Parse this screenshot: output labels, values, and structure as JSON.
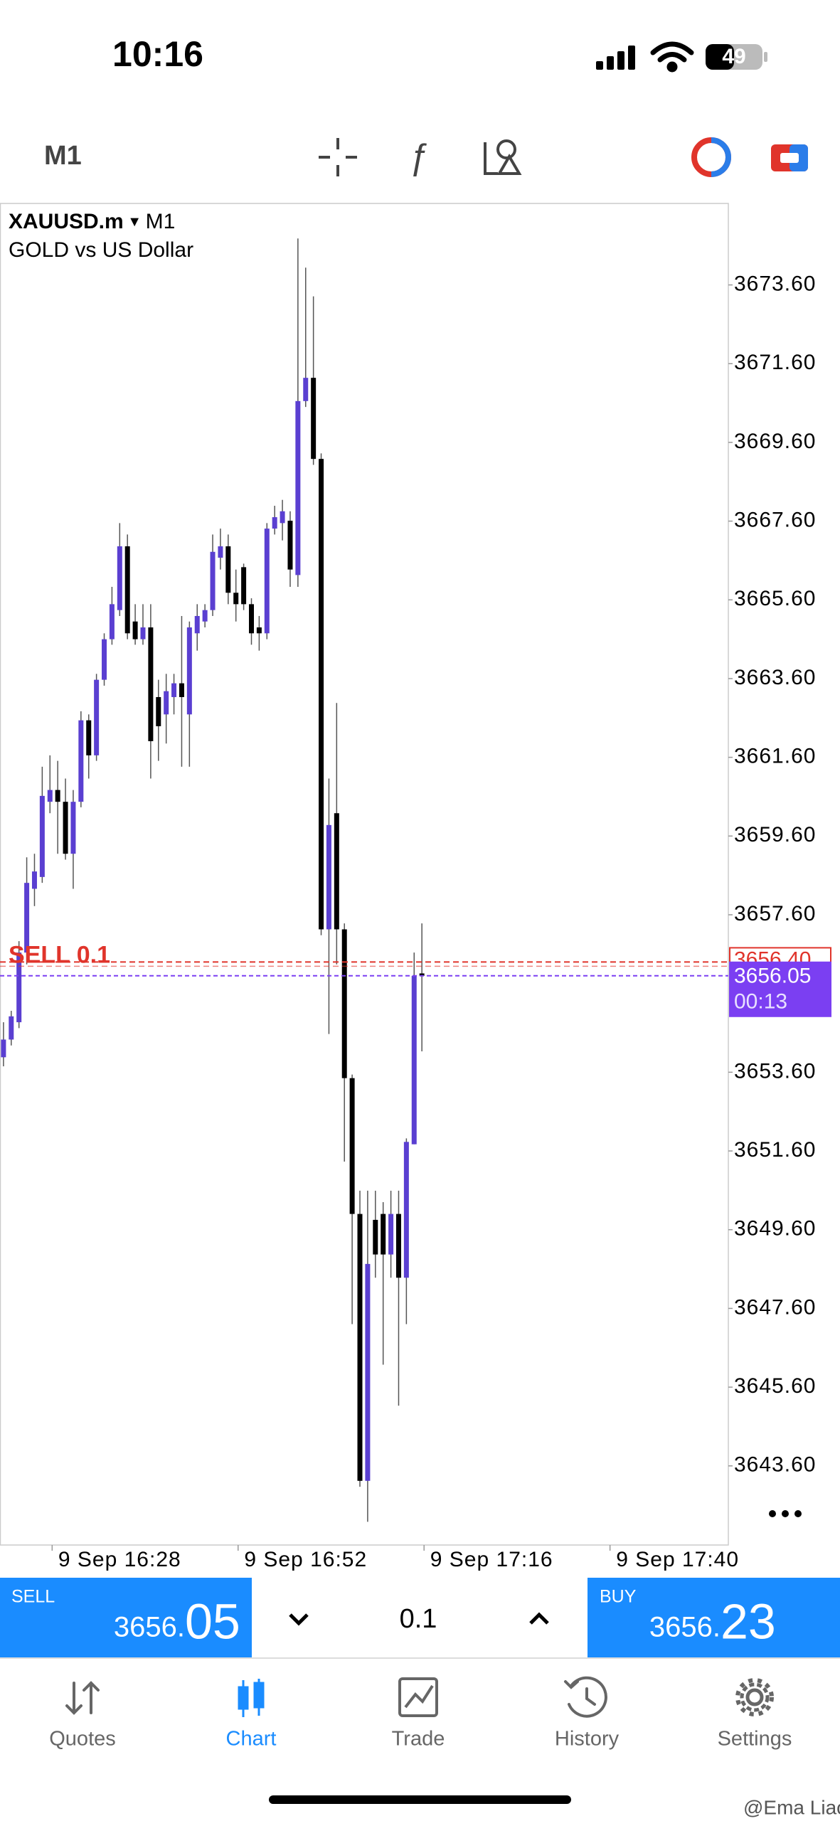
{
  "status_bar": {
    "time": "10:16",
    "battery": "49"
  },
  "toolbar": {
    "timeframe": "M1"
  },
  "chart_data": {
    "type": "candlestick",
    "symbol": "XAUUSD.m",
    "timeframe": "M1",
    "description": "GOLD vs US Dollar",
    "open": [
      3653.98,
      3654.43,
      3654.87,
      3656.64,
      3658.26,
      3658.56,
      3660.47,
      3660.77,
      3660.47,
      3659.15,
      3660.47,
      3662.54,
      3661.65,
      3663.57,
      3664.6,
      3665.34,
      3666.96,
      3665.05,
      3664.6,
      3664.9,
      3663.13,
      3662.69,
      3663.13,
      3663.48,
      3662.69,
      3664.75,
      3665.05,
      3665.34,
      3666.67,
      3666.96,
      3665.78,
      3666.43,
      3665.49,
      3664.9,
      3664.75,
      3667.41,
      3667.55,
      3667.61,
      3666.23,
      3670.65,
      3671.24,
      3669.18,
      3657.23,
      3660.18,
      3657.23,
      3653.45,
      3650.0,
      3643.22,
      3649.85,
      3650.0,
      3648.97,
      3650.0,
      3648.38,
      3651.77,
      3656.11
    ],
    "high": [
      3654.87,
      3655.16,
      3656.93,
      3659.06,
      3659.15,
      3661.36,
      3661.65,
      3661.51,
      3661.06,
      3660.77,
      3662.77,
      3662.69,
      3663.72,
      3664.75,
      3665.93,
      3667.55,
      3667.26,
      3665.49,
      3665.49,
      3665.49,
      3663.57,
      3663.72,
      3663.72,
      3665.19,
      3665.05,
      3665.49,
      3665.49,
      3667.26,
      3667.41,
      3667.26,
      3666.37,
      3666.52,
      3665.64,
      3665.19,
      3667.55,
      3667.99,
      3668.14,
      3667.85,
      3674.78,
      3674.04,
      3673.31,
      3669.32,
      3661.06,
      3662.98,
      3657.38,
      3653.54,
      3650.59,
      3650.59,
      3650.59,
      3650.3,
      3650.59,
      3650.59,
      3651.92,
      3656.64,
      3657.38
    ],
    "low": [
      3653.75,
      3654.28,
      3654.72,
      3656.34,
      3657.82,
      3658.41,
      3660.18,
      3659.15,
      3659.0,
      3658.26,
      3660.33,
      3661.06,
      3661.51,
      3663.42,
      3664.46,
      3665.19,
      3664.6,
      3664.46,
      3664.46,
      3661.06,
      3661.51,
      3661.95,
      3662.69,
      3661.36,
      3661.36,
      3664.31,
      3664.9,
      3665.19,
      3666.37,
      3665.49,
      3665.05,
      3665.34,
      3664.46,
      3664.31,
      3664.6,
      3667.26,
      3667.11,
      3665.93,
      3665.93,
      3670.5,
      3669.03,
      3657.08,
      3654.57,
      3656.34,
      3651.33,
      3647.2,
      3643.07,
      3642.18,
      3648.38,
      3646.17,
      3648.38,
      3645.13,
      3647.2,
      3651.77,
      3654.13
    ],
    "close": [
      3654.43,
      3655.02,
      3656.64,
      3658.41,
      3658.7,
      3660.62,
      3660.77,
      3660.47,
      3659.15,
      3660.47,
      3662.54,
      3661.65,
      3663.57,
      3664.6,
      3665.49,
      3666.96,
      3664.75,
      3664.6,
      3664.9,
      3662.01,
      3662.39,
      3663.28,
      3663.48,
      3663.13,
      3664.9,
      3665.19,
      3665.34,
      3666.82,
      3666.96,
      3665.78,
      3665.49,
      3665.49,
      3664.75,
      3664.75,
      3667.41,
      3667.7,
      3667.85,
      3666.37,
      3670.65,
      3671.24,
      3669.18,
      3657.23,
      3659.88,
      3657.23,
      3653.45,
      3650.0,
      3643.22,
      3648.73,
      3648.97,
      3648.97,
      3650.0,
      3648.38,
      3651.83,
      3656.05,
      3656.05
    ],
    "up_color": "#5a3fd1",
    "down_color": "#000000",
    "ylim": [
      3641.59,
      3675.67
    ],
    "yticks": [
      {
        "value": 3673.6,
        "label": "3673.60"
      },
      {
        "value": 3671.6,
        "label": "3671.60"
      },
      {
        "value": 3669.6,
        "label": "3669.60"
      },
      {
        "value": 3667.6,
        "label": "3667.60"
      },
      {
        "value": 3665.6,
        "label": "3665.60"
      },
      {
        "value": 3663.6,
        "label": "3663.60"
      },
      {
        "value": 3661.6,
        "label": "3661.60"
      },
      {
        "value": 3659.6,
        "label": "3659.60"
      },
      {
        "value": 3657.6,
        "label": "3657.60"
      },
      {
        "value": 3653.6,
        "label": "3653.60"
      },
      {
        "value": 3651.6,
        "label": "3651.60"
      },
      {
        "value": 3649.6,
        "label": "3649.60"
      },
      {
        "value": 3647.6,
        "label": "3647.60"
      },
      {
        "value": 3645.6,
        "label": "3645.60"
      },
      {
        "value": 3643.6,
        "label": "3643.60"
      }
    ],
    "xlim": [
      -0.45,
      93.55
    ],
    "xticks": [
      {
        "value": 15,
        "label": "9 Sep 16:28"
      },
      {
        "value": 39,
        "label": "9 Sep 16:52"
      },
      {
        "value": 63,
        "label": "9 Sep 17:16"
      },
      {
        "value": 87,
        "label": "9 Sep 17:40"
      }
    ],
    "grid": false,
    "position_line": {
      "label": "SELL 0.1",
      "value": 3656.4,
      "value_label": "3656.40",
      "color": "#e0342b"
    },
    "price_line": {
      "value": 3656.05,
      "value_label": "3656.05",
      "countdown": "00:13",
      "color": "#7b3ff2"
    }
  },
  "trade_panel": {
    "sell": {
      "label": "SELL",
      "price_head": "3656.",
      "price_tail": "05"
    },
    "buy": {
      "label": "BUY",
      "price_head": "3656.",
      "price_tail": "23"
    },
    "lot": "0.1"
  },
  "tabs": [
    "Quotes",
    "Chart",
    "Trade",
    "History",
    "Settings"
  ],
  "watermark": "@Ema Liao"
}
